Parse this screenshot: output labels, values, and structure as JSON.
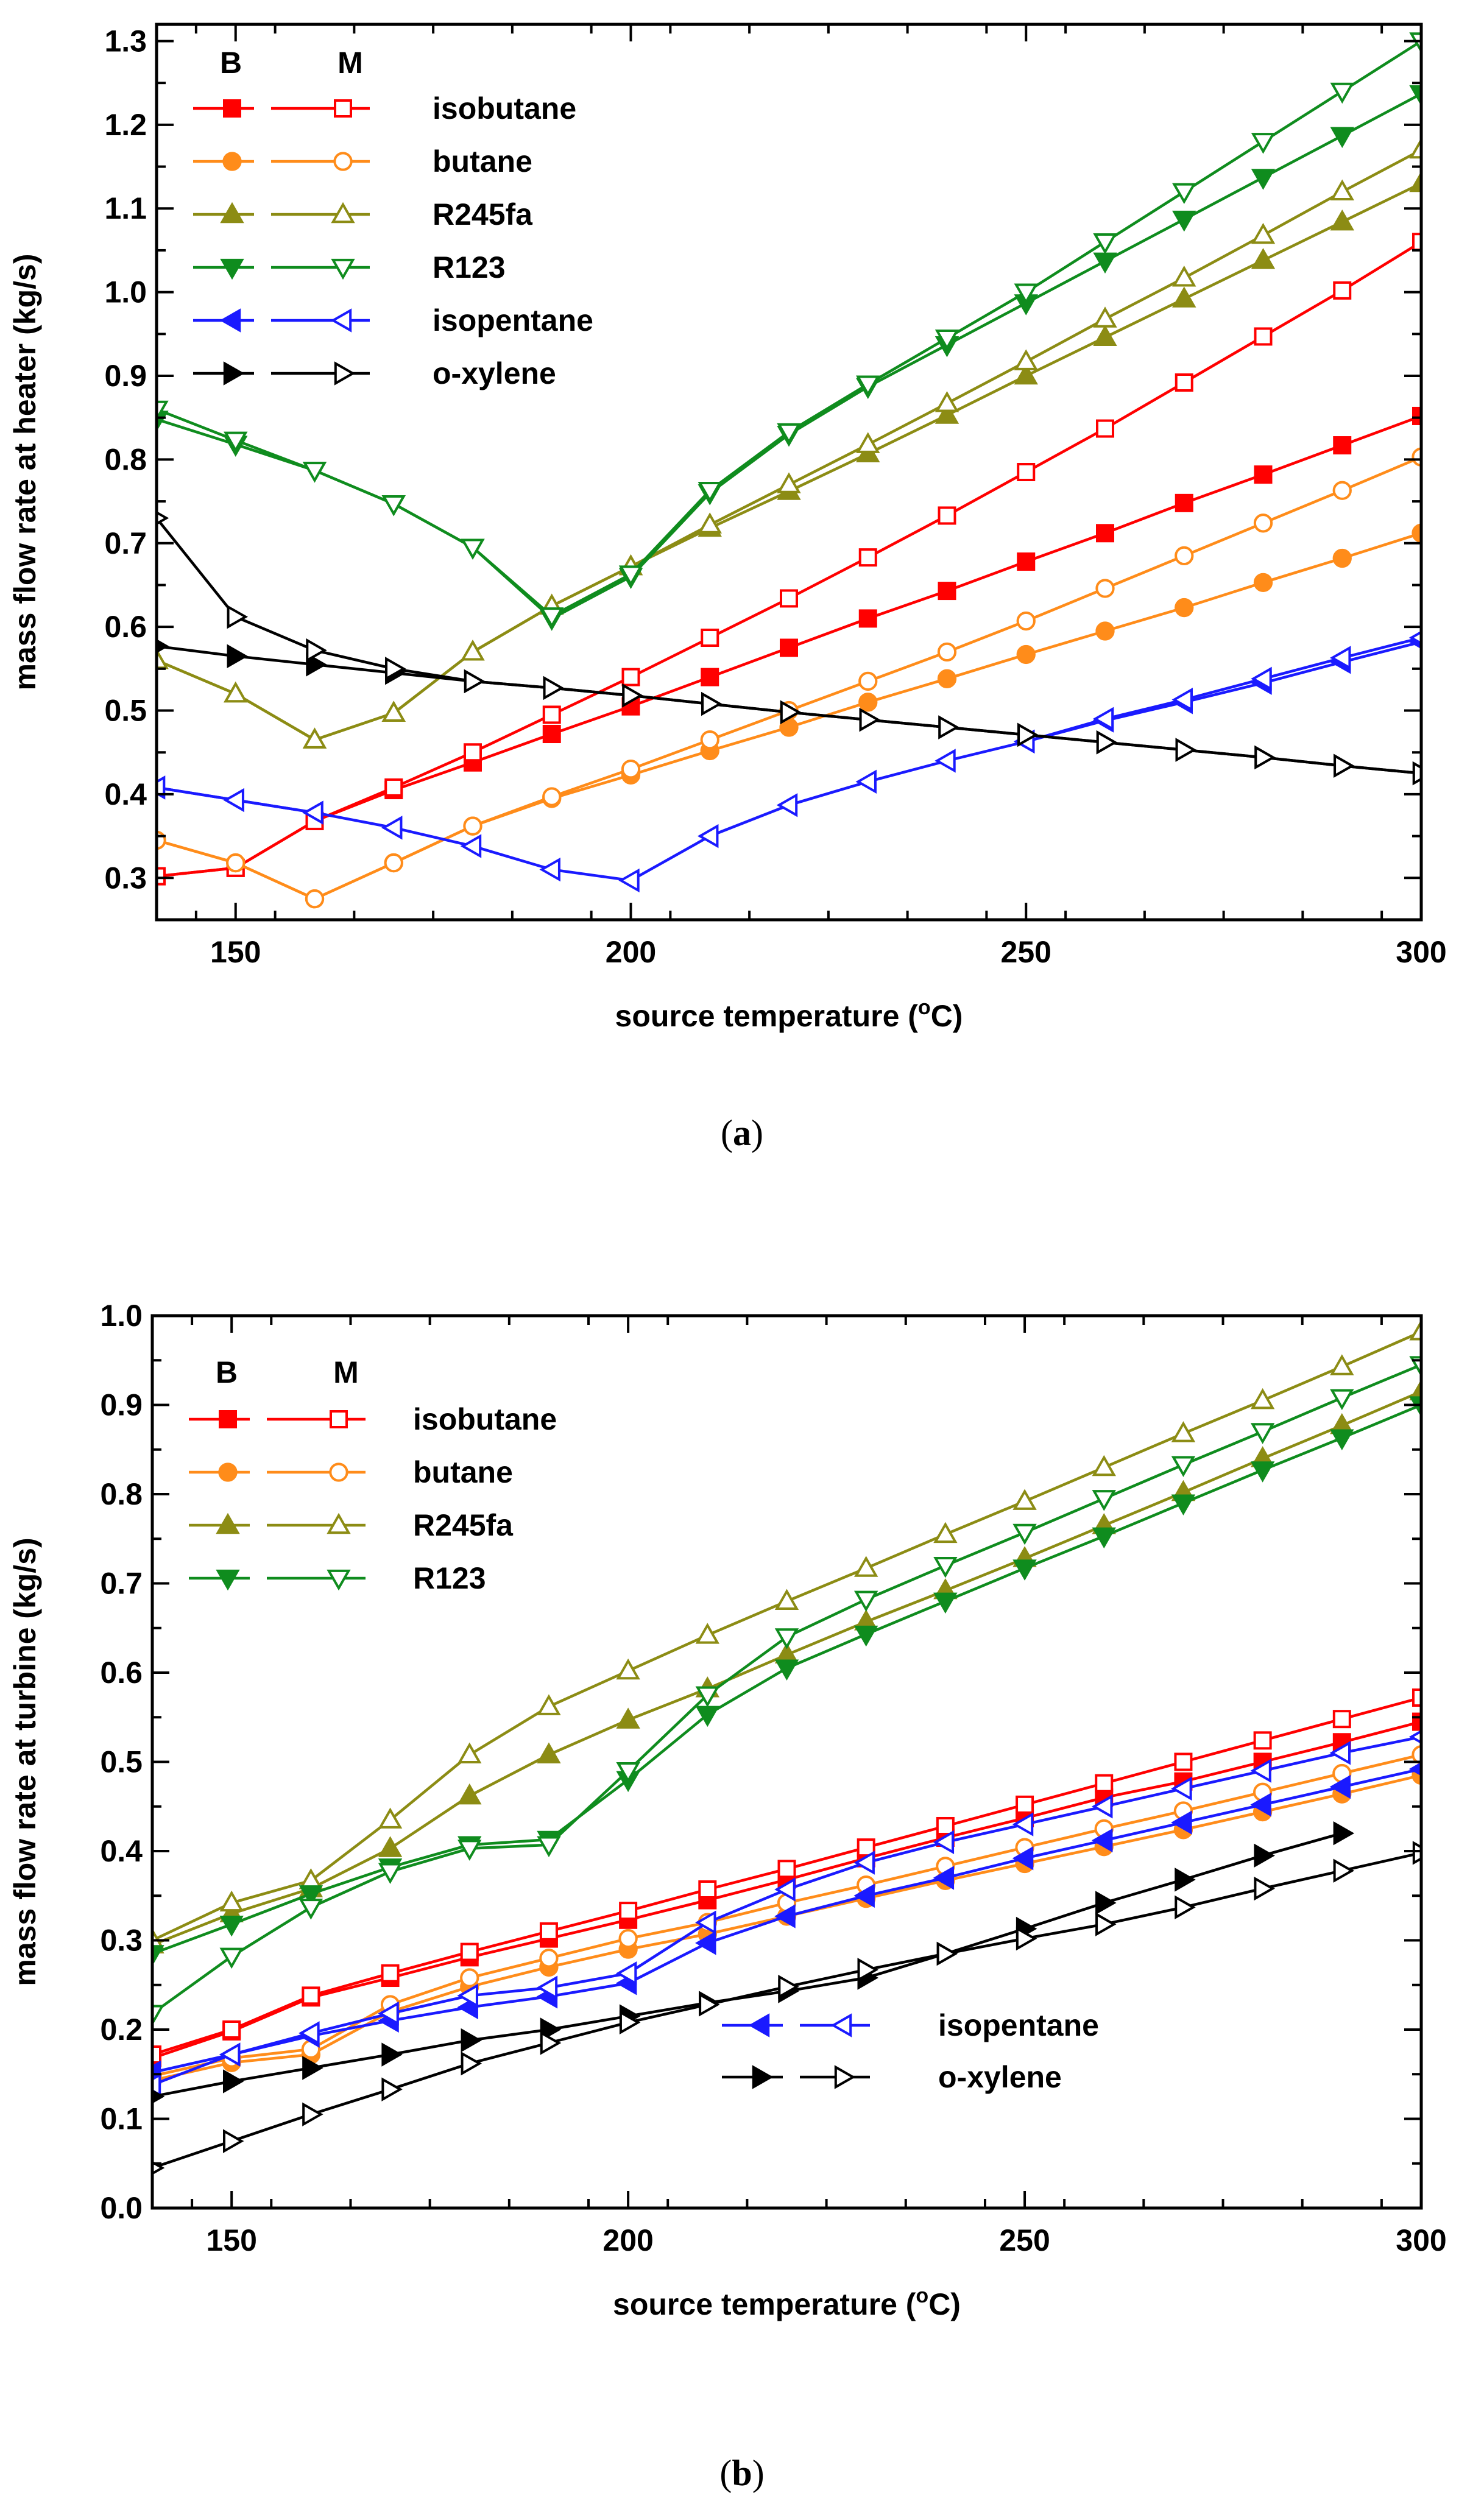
{
  "chart_data": [
    {
      "type": "line",
      "panel": "a",
      "caption_open": "(",
      "caption_letter": "a",
      "caption_close": ")",
      "xlabel": "source temperature (",
      "xlabel_unit_sup": "o",
      "xlabel_unit": "C)",
      "ylabel": "mass flow rate at heater (kg/s)",
      "xlim": [
        140,
        300
      ],
      "ylim": [
        0.25,
        1.32
      ],
      "xticks": [
        150,
        200,
        250,
        300
      ],
      "xtick_labels": [
        "150",
        "200",
        "250",
        "300"
      ],
      "yticks": [
        0.3,
        0.4,
        0.5,
        0.6,
        0.7,
        0.8,
        0.9,
        1.0,
        1.1,
        1.2,
        1.3
      ],
      "ytick_labels": [
        "0.3",
        "0.4",
        "0.5",
        "0.6",
        "0.7",
        "0.8",
        "0.9",
        "1.0",
        "1.1",
        "1.2",
        "1.3"
      ],
      "legend": {
        "placement": "top-left",
        "header_B": "B",
        "header_M": "M"
      },
      "x": [
        140,
        150,
        160,
        170,
        180,
        190,
        200,
        210,
        220,
        230,
        240,
        250,
        260,
        270,
        280,
        290,
        300
      ],
      "series": [
        {
          "name": "isobutane",
          "color": "#ff0000",
          "marker": "square",
          "B": [
            0.302,
            0.312,
            0.368,
            0.405,
            0.438,
            0.472,
            0.505,
            0.54,
            0.575,
            0.61,
            0.643,
            0.678,
            0.712,
            0.748,
            0.782,
            0.817,
            0.852
          ],
          "M": [
            0.302,
            0.312,
            0.368,
            0.408,
            0.45,
            0.495,
            0.54,
            0.587,
            0.634,
            0.683,
            0.733,
            0.785,
            0.837,
            0.892,
            0.947,
            1.002,
            1.06
          ]
        },
        {
          "name": "butane",
          "color": "#ff8c1a",
          "marker": "circle",
          "B": [
            0.345,
            0.318,
            0.275,
            0.318,
            0.362,
            0.395,
            0.423,
            0.452,
            0.48,
            0.51,
            0.538,
            0.567,
            0.595,
            0.623,
            0.653,
            0.682,
            0.712
          ],
          "M": [
            0.345,
            0.318,
            0.275,
            0.318,
            0.362,
            0.397,
            0.43,
            0.465,
            0.5,
            0.535,
            0.57,
            0.607,
            0.646,
            0.685,
            0.724,
            0.763,
            0.803
          ]
        },
        {
          "name": "R245fa",
          "color": "#8c8c14",
          "marker": "triangle-up",
          "B": [
            0.56,
            0.52,
            0.465,
            0.497,
            0.57,
            0.625,
            0.672,
            0.718,
            0.762,
            0.807,
            0.853,
            0.9,
            0.946,
            0.992,
            1.038,
            1.084,
            1.13
          ],
          "M": [
            0.56,
            0.52,
            0.465,
            0.497,
            0.57,
            0.625,
            0.672,
            0.722,
            0.77,
            0.818,
            0.867,
            0.917,
            0.968,
            1.017,
            1.068,
            1.12,
            1.17
          ]
        },
        {
          "name": "R123",
          "color": "#0f8c1e",
          "marker": "triangle-down",
          "B": [
            0.848,
            0.818,
            0.787,
            0.747,
            0.695,
            0.61,
            0.66,
            0.76,
            0.83,
            0.887,
            0.937,
            0.987,
            1.037,
            1.087,
            1.137,
            1.187,
            1.237
          ],
          "M": [
            0.86,
            0.823,
            0.787,
            0.747,
            0.695,
            0.613,
            0.663,
            0.763,
            0.833,
            0.89,
            0.945,
            1.0,
            1.06,
            1.12,
            1.18,
            1.24,
            1.3
          ]
        },
        {
          "name": "isopentane",
          "color": "#1a1aff",
          "marker": "triangle-left",
          "B": [
            0.408,
            0.393,
            0.378,
            null,
            null,
            null,
            null,
            null,
            null,
            null,
            null,
            0.463,
            0.488,
            0.51,
            0.533,
            0.558,
            0.582
          ],
          "M": [
            0.408,
            0.393,
            0.378,
            0.36,
            0.338,
            0.31,
            0.297,
            0.35,
            0.387,
            0.415,
            0.44,
            0.463,
            0.49,
            0.513,
            0.538,
            0.563,
            0.587
          ]
        },
        {
          "name": "o-xylene",
          "color": "#000000",
          "marker": "triangle-right",
          "B": [
            0.577,
            0.565,
            0.555,
            0.545,
            0.535,
            0.527,
            0.518,
            0.508,
            0.498,
            0.489,
            0.48,
            0.471,
            0.462,
            0.453,
            0.444,
            0.434,
            0.425
          ],
          "M": [
            0.73,
            0.612,
            0.572,
            0.55,
            0.535,
            0.527,
            0.518,
            0.508,
            0.498,
            0.489,
            0.48,
            0.471,
            0.462,
            0.453,
            0.444,
            0.434,
            0.425
          ]
        }
      ]
    },
    {
      "type": "line",
      "panel": "b",
      "caption_open": "(",
      "caption_letter": "b",
      "caption_close": ")",
      "xlabel": "source temperature (",
      "xlabel_unit_sup": "o",
      "xlabel_unit": "C)",
      "ylabel": "mass flow rate at turbine (kg/s)",
      "xlim": [
        140,
        300
      ],
      "ylim": [
        0.0,
        1.0
      ],
      "xticks": [
        150,
        200,
        250,
        300
      ],
      "xtick_labels": [
        "150",
        "200",
        "250",
        "300"
      ],
      "yticks": [
        0.0,
        0.1,
        0.2,
        0.3,
        0.4,
        0.5,
        0.6,
        0.7,
        0.8,
        0.9,
        1.0
      ],
      "ytick_labels": [
        "0.0",
        "0.1",
        "0.2",
        "0.3",
        "0.4",
        "0.5",
        "0.6",
        "0.7",
        "0.8",
        "0.9",
        "1.0"
      ],
      "legend": {
        "placement": "top-left and bottom-center",
        "header_B": "B",
        "header_M": "M"
      },
      "x": [
        140,
        150,
        160,
        170,
        180,
        190,
        200,
        210,
        220,
        230,
        240,
        250,
        260,
        270,
        280,
        290,
        300
      ],
      "series": [
        {
          "name": "isobutane",
          "color": "#ff0000",
          "marker": "square",
          "B": [
            0.168,
            0.198,
            0.236,
            0.258,
            0.281,
            0.302,
            0.323,
            0.345,
            0.368,
            0.392,
            0.415,
            0.437,
            0.46,
            0.478,
            0.5,
            0.522,
            0.545
          ],
          "M": [
            0.172,
            0.2,
            0.238,
            0.263,
            0.287,
            0.31,
            0.333,
            0.357,
            0.38,
            0.404,
            0.428,
            0.452,
            0.476,
            0.5,
            0.524,
            0.548,
            0.572
          ]
        },
        {
          "name": "butane",
          "color": "#ff8c1a",
          "marker": "circle",
          "B": [
            0.143,
            0.163,
            0.172,
            0.22,
            0.248,
            0.27,
            0.29,
            0.307,
            0.327,
            0.347,
            0.367,
            0.386,
            0.405,
            0.424,
            0.444,
            0.464,
            0.485
          ],
          "M": [
            0.148,
            0.168,
            0.178,
            0.228,
            0.258,
            0.28,
            0.302,
            0.32,
            0.342,
            0.362,
            0.383,
            0.404,
            0.425,
            0.445,
            0.466,
            0.487,
            0.508
          ]
        },
        {
          "name": "R245fa",
          "color": "#8c8c14",
          "marker": "triangle-up",
          "B": [
            0.295,
            0.33,
            0.358,
            0.403,
            0.462,
            0.508,
            0.547,
            0.582,
            0.62,
            0.657,
            0.692,
            0.728,
            0.765,
            0.802,
            0.84,
            0.877,
            0.915
          ],
          "M": [
            0.3,
            0.342,
            0.367,
            0.435,
            0.508,
            0.562,
            0.602,
            0.642,
            0.68,
            0.717,
            0.755,
            0.792,
            0.83,
            0.868,
            0.905,
            0.943,
            0.982
          ]
        },
        {
          "name": "R123",
          "color": "#0f8c1e",
          "marker": "triangle-down",
          "B": [
            0.285,
            0.318,
            0.352,
            0.382,
            0.407,
            0.413,
            0.48,
            0.553,
            0.605,
            0.643,
            0.68,
            0.717,
            0.753,
            0.79,
            0.827,
            0.863,
            0.9
          ],
          "M": [
            0.218,
            0.282,
            0.337,
            0.377,
            0.403,
            0.407,
            0.49,
            0.575,
            0.64,
            0.682,
            0.72,
            0.757,
            0.795,
            0.833,
            0.87,
            0.908,
            0.945
          ]
        },
        {
          "name": "isopentane",
          "color": "#1a1aff",
          "marker": "triangle-left",
          "B": [
            0.152,
            0.172,
            0.193,
            0.21,
            0.225,
            0.237,
            0.252,
            0.297,
            0.327,
            0.35,
            0.37,
            0.392,
            0.412,
            0.432,
            0.452,
            0.472,
            0.492
          ],
          "M": [
            0.138,
            0.172,
            0.196,
            0.218,
            0.238,
            0.247,
            0.263,
            0.32,
            0.357,
            0.387,
            0.41,
            0.43,
            0.45,
            0.47,
            0.49,
            0.51,
            0.528
          ]
        },
        {
          "name": "o-xylene",
          "color": "#000000",
          "marker": "triangle-right",
          "B": [
            0.125,
            0.142,
            0.157,
            0.172,
            0.188,
            0.2,
            0.215,
            0.23,
            0.243,
            0.258,
            0.285,
            0.313,
            0.342,
            0.368,
            0.395,
            0.42,
            null
          ],
          "M": [
            0.045,
            0.075,
            0.105,
            0.133,
            0.162,
            0.185,
            0.208,
            0.228,
            0.248,
            0.267,
            0.285,
            0.302,
            0.318,
            0.337,
            0.358,
            0.378,
            0.398
          ]
        }
      ]
    }
  ]
}
